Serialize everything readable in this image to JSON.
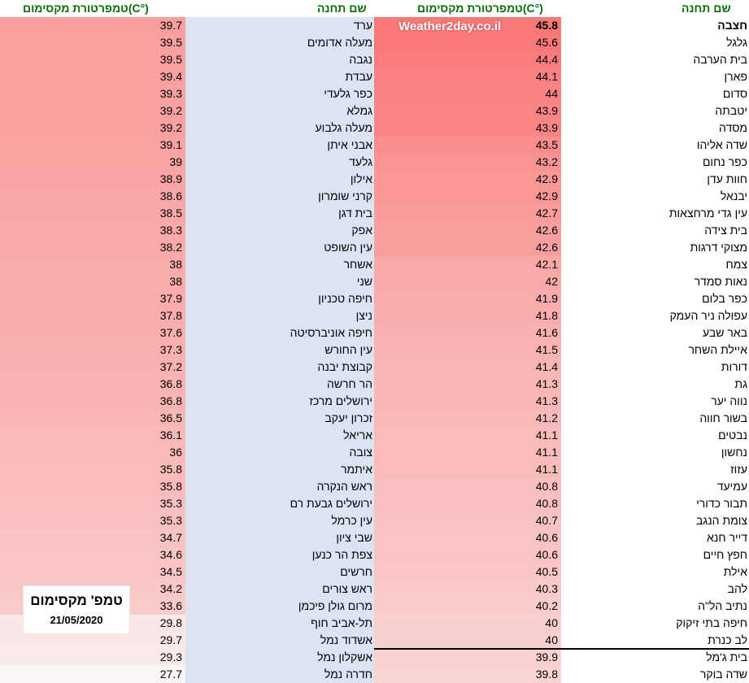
{
  "headers": {
    "station": "שם תחנה",
    "temp": "טמפרטורת מקסימום(C°)"
  },
  "watermark": "Weather2day.co.il",
  "stamp": {
    "title": "טמפ' מקסימום",
    "date": "21/05/2020"
  },
  "right_table": [
    {
      "name": "חצבה",
      "temp": "45.8",
      "bold": true
    },
    {
      "name": "גלגל",
      "temp": "45.6"
    },
    {
      "name": "בית הערבה",
      "temp": "44.4"
    },
    {
      "name": "פארן",
      "temp": "44.1"
    },
    {
      "name": "סדום",
      "temp": "44"
    },
    {
      "name": "יטבתה",
      "temp": "43.9"
    },
    {
      "name": "מסדה",
      "temp": "43.9"
    },
    {
      "name": "שדה אליהו",
      "temp": "43.5"
    },
    {
      "name": "כפר נחום",
      "temp": "43.2"
    },
    {
      "name": "חוות עדן",
      "temp": "42.9"
    },
    {
      "name": "יבנאל",
      "temp": "42.9"
    },
    {
      "name": "עין גדי מרחצאות",
      "temp": "42.7"
    },
    {
      "name": "בית צידה",
      "temp": "42.6"
    },
    {
      "name": "מצוקי דרגות",
      "temp": "42.6"
    },
    {
      "name": "צמח",
      "temp": "42.1"
    },
    {
      "name": "נאות סמדר",
      "temp": "42"
    },
    {
      "name": "כפר בלום",
      "temp": "41.9"
    },
    {
      "name": "עפולה ניר העמק",
      "temp": "41.8"
    },
    {
      "name": "באר שבע",
      "temp": "41.6"
    },
    {
      "name": "איילת השחר",
      "temp": "41.5"
    },
    {
      "name": "דורות",
      "temp": "41.4"
    },
    {
      "name": "גת",
      "temp": "41.3"
    },
    {
      "name": "נווה יער",
      "temp": "41.3"
    },
    {
      "name": "בשור חווה",
      "temp": "41.2"
    },
    {
      "name": "נבטים",
      "temp": "41.1"
    },
    {
      "name": "נחשון",
      "temp": "41.1"
    },
    {
      "name": "עזוז",
      "temp": "41.1"
    },
    {
      "name": "עמיעד",
      "temp": "40.8"
    },
    {
      "name": "תבור כדורי",
      "temp": "40.8"
    },
    {
      "name": "צומת הנגב",
      "temp": "40.7"
    },
    {
      "name": "דייר חנא",
      "temp": "40.6"
    },
    {
      "name": "חפץ חיים",
      "temp": "40.6"
    },
    {
      "name": "אילת",
      "temp": "40.5"
    },
    {
      "name": "להב",
      "temp": "40.3"
    },
    {
      "name": "נתיב הל\"ה",
      "temp": "40.2"
    },
    {
      "name": "חיפה בתי זיקוק",
      "temp": "40"
    },
    {
      "name": "לב כנרת",
      "temp": "40"
    },
    {
      "name": "בית ג'מל",
      "temp": "39.9"
    },
    {
      "name": "שדה בוקר",
      "temp": "39.8"
    }
  ],
  "left_table": [
    {
      "name": "ערד",
      "temp": "39.7"
    },
    {
      "name": "מעלה אדומים",
      "temp": "39.5"
    },
    {
      "name": "נגבה",
      "temp": "39.5"
    },
    {
      "name": "עבדת",
      "temp": "39.4"
    },
    {
      "name": "כפר גלעדי",
      "temp": "39.3"
    },
    {
      "name": "גמלא",
      "temp": "39.2"
    },
    {
      "name": "מעלה גלבוע",
      "temp": "39.2"
    },
    {
      "name": "אבני איתן",
      "temp": "39.1"
    },
    {
      "name": "גלעד",
      "temp": "39"
    },
    {
      "name": "אילון",
      "temp": "38.9"
    },
    {
      "name": "קרני שומרון",
      "temp": "38.6"
    },
    {
      "name": "בית דגן",
      "temp": "38.5"
    },
    {
      "name": "אפק",
      "temp": "38.3"
    },
    {
      "name": "עין השופט",
      "temp": "38.2"
    },
    {
      "name": "אשחר",
      "temp": "38"
    },
    {
      "name": "שני",
      "temp": "38"
    },
    {
      "name": "חיפה טכניון",
      "temp": "37.9"
    },
    {
      "name": "ניצן",
      "temp": "37.8"
    },
    {
      "name": "חיפה אוניברסיטה",
      "temp": "37.6"
    },
    {
      "name": "עין החורש",
      "temp": "37.3"
    },
    {
      "name": "קבוצת יבנה",
      "temp": "37.2"
    },
    {
      "name": "הר חרשה",
      "temp": "36.8"
    },
    {
      "name": "ירושלים מרכז",
      "temp": "36.8"
    },
    {
      "name": "זכרון יעקב",
      "temp": "36.5"
    },
    {
      "name": "אריאל",
      "temp": "36.1"
    },
    {
      "name": "צובה",
      "temp": "36"
    },
    {
      "name": "איתמר",
      "temp": "35.8"
    },
    {
      "name": "ראש הנקרה",
      "temp": "35.8"
    },
    {
      "name": "ירושלים גבעת רם",
      "temp": "35.3"
    },
    {
      "name": "עין כרמל",
      "temp": "35.3"
    },
    {
      "name": "שבי ציון",
      "temp": "34.7"
    },
    {
      "name": "צפת הר כנען",
      "temp": "34.6"
    },
    {
      "name": "חרשים",
      "temp": "34.5"
    },
    {
      "name": "ראש צורים",
      "temp": "34.2"
    },
    {
      "name": "מרום גולן פיכמן",
      "temp": "33.6"
    },
    {
      "name": "תל-אביב חוף",
      "temp": "29.8"
    },
    {
      "name": "אשדוד נמל",
      "temp": "29.7"
    },
    {
      "name": "אשקלון נמל",
      "temp": "29.3"
    },
    {
      "name": "חדרה נמל",
      "temp": "27.7"
    }
  ]
}
